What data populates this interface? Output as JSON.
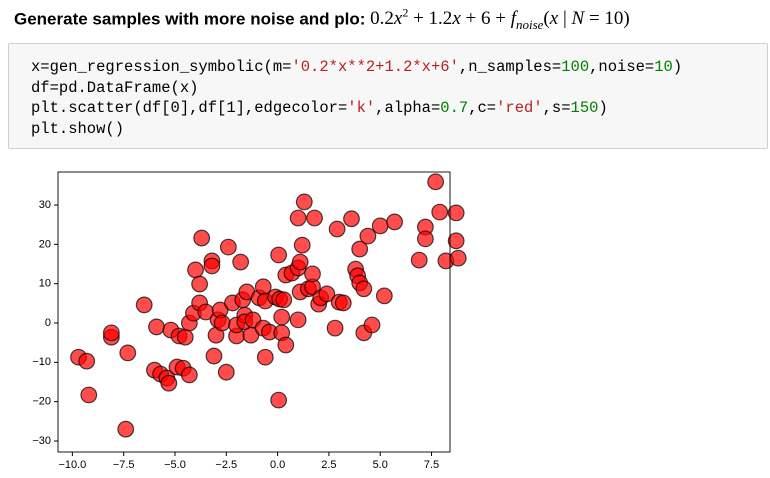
{
  "heading": {
    "text": "Generate samples with more noise and plo:",
    "formula": [
      "0.2",
      "x",
      "2",
      " + 1.2",
      "x",
      " + 6 + ",
      "f",
      "noise",
      "(",
      "x",
      " | ",
      "N",
      " = 10)"
    ]
  },
  "code": {
    "lines": [
      "x=gen_regression_symbolic(m='0.2*x**2+1.2*x+6',n_samples=100,noise=10)",
      "df=pd.DataFrame(x)",
      "plt.scatter(df[0],df[1],edgecolor='k',alpha=0.7,c='red',s=150)",
      "plt.show()"
    ]
  },
  "chart_data": {
    "type": "scatter",
    "color": "red",
    "edgecolor": "black",
    "alpha": 0.7,
    "xlim": [
      -10.7,
      8.4
    ],
    "ylim": [
      -32.8,
      38.4
    ],
    "xticks": [
      {
        "value": -10,
        "label": "−10.0"
      },
      {
        "value": -7.5,
        "label": "−7.5"
      },
      {
        "value": -5,
        "label": "−5.0"
      },
      {
        "value": -2.5,
        "label": "−2.5"
      },
      {
        "value": 0,
        "label": "0.0"
      },
      2.5,
      {
        "value": 5,
        "label": "5.0"
      },
      7.5
    ],
    "yticks": [
      {
        "value": -30,
        "label": "−30"
      },
      {
        "value": -20,
        "label": "−20"
      },
      {
        "value": -10,
        "label": "−10"
      },
      0,
      10,
      20,
      30
    ],
    "x": [
      -9.7,
      -9.3,
      -9.2,
      -7.4,
      -7.3,
      -8.1,
      -8.1,
      -6.5,
      -5.9,
      -6.0,
      -5.7,
      -5.4,
      -5.3,
      -5.2,
      -4.9,
      -4.6,
      -4.3,
      -4.8,
      -4.5,
      -4.3,
      -4.1,
      -4.0,
      -3.8,
      -3.7,
      -3.8,
      -3.5,
      -3.2,
      -3.2,
      -3.1,
      -3.0,
      -2.9,
      -2.8,
      -2.7,
      -2.5,
      -2.4,
      -2.2,
      -2.0,
      -2.0,
      -1.8,
      -1.7,
      -1.6,
      -1.6,
      -1.5,
      -1.3,
      -1.2,
      -0.9,
      -0.7,
      -0.6,
      -0.6,
      -0.7,
      -0.4,
      -0.1,
      0.05,
      0.1,
      0.3,
      0.05,
      0.2,
      0.4,
      0.2,
      0.4,
      0.7,
      1.0,
      1.0,
      1.1,
      1.2,
      1.0,
      1.3,
      1.1,
      1.5,
      1.7,
      1.8,
      1.7,
      2.0,
      2.1,
      2.4,
      2.8,
      2.9,
      3.0,
      3.2,
      3.6,
      3.8,
      3.9,
      4.0,
      4.0,
      4.2,
      4.2,
      4.4,
      4.6,
      5.0,
      5.2,
      5.7,
      6.9,
      7.2,
      7.2,
      7.7,
      7.9,
      8.2,
      8.7,
      8.7,
      8.8
    ],
    "values": [
      -8.7,
      -9.7,
      -18.3,
      -27,
      -7.6,
      -3.6,
      -2.5,
      4.6,
      -1.0,
      -12,
      -13,
      -14,
      -15.3,
      -1.8,
      -11.2,
      -11.5,
      -13.2,
      -3.3,
      -3.6,
      0,
      2.5,
      13.5,
      5.1,
      21.6,
      9.9,
      2.8,
      15.8,
      14.5,
      -8.4,
      -3.1,
      0.8,
      3.3,
      0,
      -12.5,
      19.3,
      5.1,
      -3.3,
      -0.5,
      15.5,
      5.9,
      2.0,
      0.3,
      7.9,
      -3.1,
      0.8,
      6.4,
      9.2,
      5.6,
      -8.7,
      -1.3,
      -2.3,
      6.6,
      17.3,
      6.1,
      5.9,
      -19.6,
      -2.5,
      -5.6,
      1.5,
      12.2,
      12.7,
      0.8,
      14,
      15.5,
      19.8,
      26.7,
      30.8,
      7.9,
      8.7,
      9.2,
      26.7,
      12.5,
      4.8,
      6.4,
      7.4,
      -1.3,
      23.9,
      5.3,
      5.1,
      26.5,
      13.7,
      12,
      18.8,
      10.2,
      8.7,
      -2.5,
      22.1,
      -0.5,
      24.7,
      6.9,
      25.7,
      16,
      24.4,
      21.4,
      35.9,
      28.2,
      15.8,
      28,
      20.9,
      16.5
    ]
  }
}
